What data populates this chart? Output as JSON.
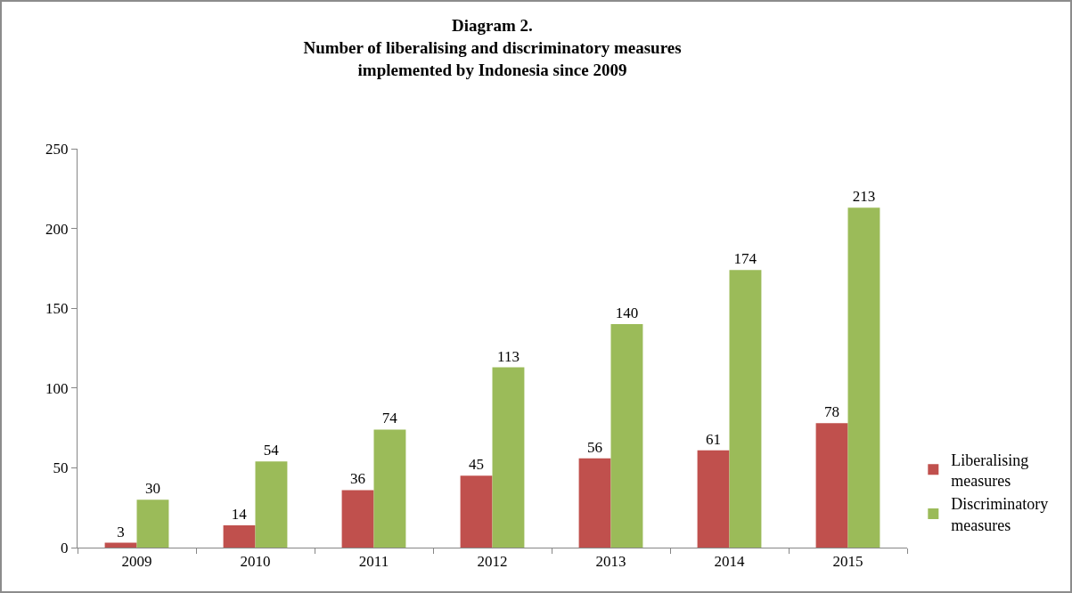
{
  "chart_data": {
    "type": "bar",
    "title": "Diagram 2.\nNumber of liberalising and discriminatory measures\nimplemented by Indonesia since 2009",
    "categories": [
      "2009",
      "2010",
      "2011",
      "2012",
      "2013",
      "2014",
      "2015"
    ],
    "series": [
      {
        "name": "Liberalising measures",
        "color": "#c0504d",
        "values": [
          3,
          14,
          36,
          45,
          56,
          61,
          78
        ]
      },
      {
        "name": "Discriminatory measures",
        "color": "#9bbb59",
        "values": [
          30,
          54,
          74,
          113,
          140,
          174,
          213
        ]
      }
    ],
    "ylim": [
      0,
      250
    ],
    "yticks": [
      0,
      50,
      100,
      150,
      200,
      250
    ],
    "grid": false,
    "legend": "right",
    "data_labels": true
  }
}
